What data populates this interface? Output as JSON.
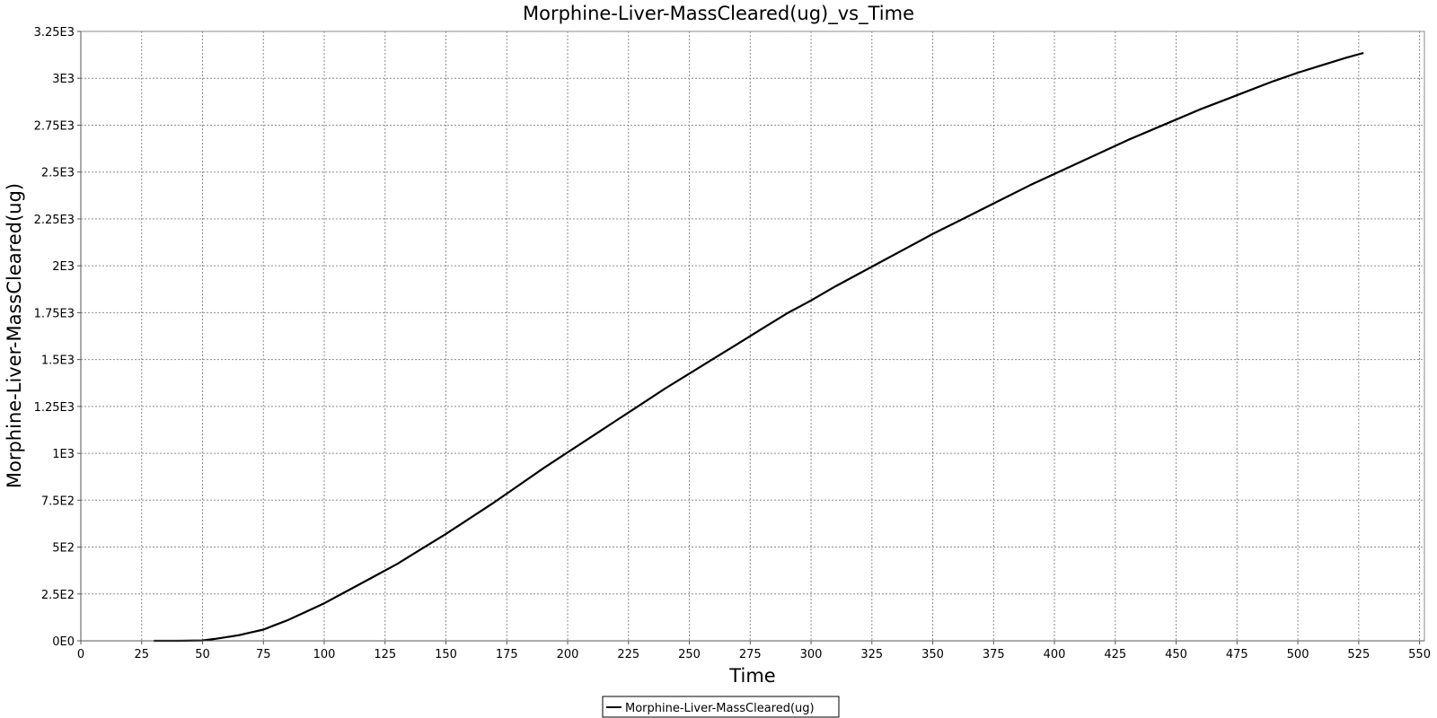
{
  "chart_data": {
    "type": "line",
    "title": "Morphine-Liver-MassCleared(ug)_vs_Time",
    "xlabel": "Time",
    "ylabel": "Morphine-Liver-MassCleared(ug)",
    "xlim": [
      0,
      552
    ],
    "ylim": [
      0,
      3250
    ],
    "x_ticks": [
      0,
      25,
      50,
      75,
      100,
      125,
      150,
      175,
      200,
      225,
      250,
      275,
      300,
      325,
      350,
      375,
      400,
      425,
      450,
      475,
      500,
      525,
      550
    ],
    "x_tick_labels": [
      "0",
      "25",
      "50",
      "75",
      "100",
      "125",
      "150",
      "175",
      "200",
      "225",
      "250",
      "275",
      "300",
      "325",
      "350",
      "375",
      "400",
      "425",
      "450",
      "475",
      "500",
      "525",
      "550"
    ],
    "y_ticks": [
      0,
      250,
      500,
      750,
      1000,
      1250,
      1500,
      1750,
      2000,
      2250,
      2500,
      2750,
      3000,
      3250
    ],
    "y_tick_labels": [
      "0E0",
      "2.5E2",
      "5E2",
      "7.5E2",
      "1E3",
      "1.25E3",
      "1.5E3",
      "1.75E3",
      "2E3",
      "2.25E3",
      "2.5E3",
      "2.75E3",
      "3E3",
      "3.25E3"
    ],
    "grid": true,
    "legend_position": "bottom-center",
    "series": [
      {
        "name": "Morphine-Liver-MassCleared(ug)",
        "color": "#000000",
        "x": [
          30,
          40,
          50,
          55,
          60,
          65,
          70,
          75,
          80,
          85,
          90,
          95,
          100,
          110,
          120,
          130,
          140,
          150,
          160,
          170,
          180,
          190,
          200,
          210,
          220,
          230,
          240,
          250,
          260,
          270,
          280,
          290,
          300,
          310,
          320,
          330,
          340,
          350,
          360,
          370,
          380,
          390,
          400,
          410,
          420,
          430,
          440,
          450,
          460,
          470,
          480,
          490,
          500,
          510,
          520,
          527
        ],
        "y": [
          0,
          0,
          2,
          10,
          20,
          30,
          45,
          60,
          85,
          110,
          140,
          170,
          200,
          270,
          340,
          410,
          490,
          570,
          655,
          740,
          830,
          920,
          1005,
          1090,
          1175,
          1260,
          1345,
          1425,
          1505,
          1585,
          1665,
          1745,
          1815,
          1890,
          1960,
          2030,
          2100,
          2170,
          2235,
          2300,
          2365,
          2430,
          2490,
          2550,
          2610,
          2670,
          2725,
          2780,
          2835,
          2885,
          2935,
          2985,
          3030,
          3070,
          3110,
          3135
        ]
      }
    ]
  }
}
